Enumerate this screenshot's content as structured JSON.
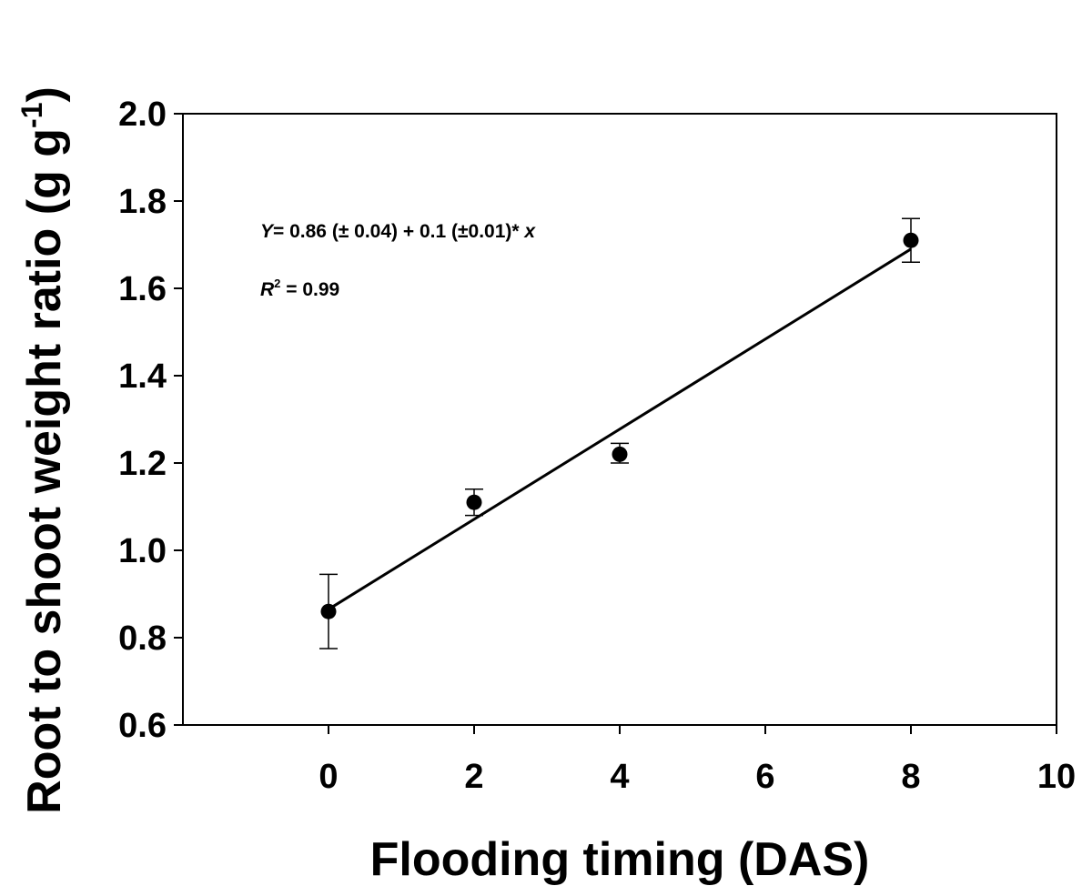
{
  "chart_data": {
    "type": "scatter",
    "xlabel": "Flooding timing (DAS)",
    "ylabel_main": "Root to shoot weight ratio (g g",
    "ylabel_sup": "-1",
    "ylabel_close": ")",
    "xlim": [
      -2,
      10
    ],
    "ylim": [
      0.6,
      2.0
    ],
    "xticks": [
      0,
      2,
      4,
      6,
      8,
      10
    ],
    "xtick_labels": [
      "0",
      "2",
      "4",
      "6",
      "8",
      "10"
    ],
    "yticks": [
      0.6,
      0.8,
      1.0,
      1.2,
      1.4,
      1.6,
      1.8,
      2.0
    ],
    "ytick_labels": [
      "0.6",
      "0.8",
      "1.0",
      "1.2",
      "1.4",
      "1.6",
      "1.8",
      "2.0"
    ],
    "points": [
      {
        "x": 0,
        "y": 0.86,
        "err_low": 0.775,
        "err_high": 0.945
      },
      {
        "x": 2,
        "y": 1.11,
        "err_low": 1.08,
        "err_high": 1.14
      },
      {
        "x": 4,
        "y": 1.22,
        "err_low": 1.2,
        "err_high": 1.245
      },
      {
        "x": 8,
        "y": 1.71,
        "err_low": 1.66,
        "err_high": 1.76
      }
    ],
    "fit_line": {
      "x_start": 0,
      "x_end": 8,
      "y_start": 0.865,
      "y_end": 1.69
    },
    "annotation": {
      "eq_var": "Y",
      "eq_body": "= 0.86 (± 0.04) + 0.1 (±0.01)* ",
      "eq_x": "x",
      "r2_var": "R",
      "r2_sup": "2",
      "r2_val": " = 0.99"
    },
    "grid": false,
    "legend": "none"
  }
}
